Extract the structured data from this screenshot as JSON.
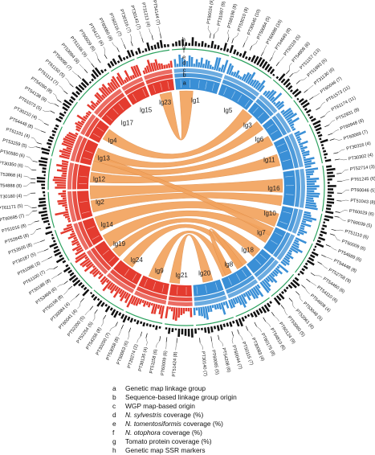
{
  "track_letters": [
    "h",
    "g",
    "f",
    "e",
    "d",
    "c",
    "b",
    "a"
  ],
  "linkage_groups": [
    {
      "label": "lg1",
      "side": "blue",
      "start": -6,
      "end": 18
    },
    {
      "label": "lg5",
      "side": "blue",
      "start": 19,
      "end": 38
    },
    {
      "label": "lg3",
      "side": "blue",
      "start": 39,
      "end": 50
    },
    {
      "label": "lg6",
      "side": "blue",
      "start": 51,
      "end": 62
    },
    {
      "label": "lg11",
      "side": "blue",
      "start": 63,
      "end": 80
    },
    {
      "label": "lg16",
      "side": "blue",
      "start": 81,
      "end": 100
    },
    {
      "label": "lg10",
      "side": "blue",
      "start": 101,
      "end": 113
    },
    {
      "label": "lg7",
      "side": "blue",
      "start": 114,
      "end": 128
    },
    {
      "label": "lg18",
      "side": "blue",
      "start": 129,
      "end": 142
    },
    {
      "label": "lg8",
      "side": "blue",
      "start": 143,
      "end": 159
    },
    {
      "label": "lg20",
      "side": "blue",
      "start": 160,
      "end": 176
    },
    {
      "label": "lg21",
      "side": "red",
      "start": 177,
      "end": 189
    },
    {
      "label": "lg9",
      "side": "red",
      "start": 190,
      "end": 206
    },
    {
      "label": "lg24",
      "side": "red",
      "start": 207,
      "end": 222
    },
    {
      "label": "lg19",
      "side": "red",
      "start": 223,
      "end": 237
    },
    {
      "label": "lg14",
      "side": "red",
      "start": 238,
      "end": 252
    },
    {
      "label": "lg2",
      "side": "red",
      "start": 253,
      "end": 268
    },
    {
      "label": "lg12",
      "side": "red",
      "start": 269,
      "end": 282
    },
    {
      "label": "lg13",
      "side": "red",
      "start": 283,
      "end": 296
    },
    {
      "label": "lg4",
      "side": "red",
      "start": 297,
      "end": 308
    },
    {
      "label": "lg17",
      "side": "red",
      "start": 309,
      "end": 326
    },
    {
      "label": "lg15",
      "side": "red",
      "start": 327,
      "end": 338
    },
    {
      "label": "lg23",
      "side": "red",
      "start": 339,
      "end": 353
    }
  ],
  "ribbons": [
    {
      "a": [
        -4,
        4
      ],
      "b": [
        344,
        351
      ]
    },
    {
      "a": [
        36,
        43
      ],
      "b": [
        300,
        307
      ]
    },
    {
      "a": [
        47,
        53
      ],
      "b": [
        288,
        294
      ]
    },
    {
      "a": [
        58,
        64
      ],
      "b": [
        280,
        286
      ]
    },
    {
      "a": [
        70,
        77
      ],
      "b": [
        273,
        279
      ]
    },
    {
      "a": [
        85,
        93
      ],
      "b": [
        263,
        271
      ]
    },
    {
      "a": [
        95,
        101
      ],
      "b": [
        255,
        262
      ]
    },
    {
      "a": [
        106,
        114
      ],
      "b": [
        243,
        252
      ]
    },
    {
      "a": [
        118,
        125
      ],
      "b": [
        232,
        240
      ]
    },
    {
      "a": [
        130,
        136
      ],
      "b": [
        224,
        230
      ]
    },
    {
      "a": [
        141,
        147
      ],
      "b": [
        214,
        221
      ]
    },
    {
      "a": [
        152,
        158
      ],
      "b": [
        196,
        203
      ]
    },
    {
      "a": [
        164,
        170
      ],
      "b": [
        184,
        190
      ]
    },
    {
      "a": [
        115,
        120
      ],
      "b": [
        286,
        290
      ]
    },
    {
      "a": [
        144,
        148
      ],
      "b": [
        152,
        156
      ]
    }
  ],
  "marker_labels_right": [
    "PT60024 (9)",
    "PT31097 (9)",
    "PT60198 (8)",
    "PT53010 (8)",
    "PT30045 (10)",
    "PT50064 (5)",
    "PT60098 (10)",
    "PT54640 (8)",
    "PT50119 (5)",
    "PT54808 (6)",
    "PT51157 (13)",
    "PT51893 (5)",
    "PT31130 (6)",
    "PT60046 (7)",
    "PT61573 (11)",
    "PT61174 (11)",
    "PT52931 (8)",
    "PT60948 (6)",
    "PT60069 (7)",
    "PT30316 (4)",
    "PT30302 (4)",
    "PT52714 (3)",
    "PT61245 (6)",
    "PT60046 (5)",
    "PT51043 (8)",
    "PT60029 (6)",
    "PT60039 (5)",
    "PT51110 (6)",
    "PT60009 (6)",
    "PT54689 (6)",
    "PT54448 (8)",
    "PT52758 (9)",
    "PT54460 (6)",
    "PT54110 (6)",
    "PT54608 (4)",
    "PT53048 (5)",
    "PT52061 (6)",
    "PT53060 (5)",
    "PT60124 (9)",
    "PT54810 (6)",
    "PT60175 (8)",
    "PT30083 (4)",
    "PT50115 (7)",
    "PT60044 (7)",
    "PT54208 (6)",
    "PT60065 (5)",
    "PT30140 (7)"
  ],
  "marker_labels_left": [
    "PT51424 (8)",
    "PT60009 (6)",
    "PT51158 (6)",
    "PT30135 (4)",
    "PT20274 (2)",
    "PT50063 (6)",
    "PT53058 (8)",
    "PT30200 (7)",
    "PT54256 (8)",
    "PT52254 (5)",
    "PT52200 (5)",
    "PT60041 (4)",
    "PT30084 (4)",
    "PT50158 (8)",
    "PT53469 (6)",
    "PT30188 (8)",
    "PT61100 (7)",
    "PT61086 (3)",
    "PT30187 (5)",
    "PT53505 (8)",
    "PT52845 (8)",
    "PT51016 (8)",
    "PT60695 (7)",
    "PT61171 (5)",
    "PT30180 (4)",
    "PT54888 (8)",
    "PT53868 (4)",
    "PT30350 (6)",
    "PT50580 (6)",
    "PT53259 (5)",
    "PT61101 (4)",
    "PT54448 (8)",
    "PT30210 (4)",
    "PT61073 (5)",
    "PT54138 (8)",
    "PT54260 (8)",
    "PT61113 (7)",
    "PT61150 (5)",
    "PT50095 (7)",
    "PT53084 (8)",
    "PT51166 (9)",
    "PT60029 (6)",
    "PT54127 (6)",
    "PT60060 (8)",
    "PT60216 (7)",
    "PT30116 (7)",
    "PT30143 (7)",
    "PT31213 (4)",
    "PT54144 (7)"
  ],
  "legend": [
    {
      "key": "a",
      "text": "Genetic map linkage group",
      "em": ""
    },
    {
      "key": "b",
      "text": "Sequence-based linkage group origin",
      "em": ""
    },
    {
      "key": "c",
      "text": "WGP map-based origin",
      "em": ""
    },
    {
      "key": "d",
      "text": " coverage (%)",
      "em": "N. sylvestris"
    },
    {
      "key": "e",
      "text": " coverage (%)",
      "em": "N. tomentosiformis"
    },
    {
      "key": "f",
      "text": " coverage (%)",
      "em": "N. otophora"
    },
    {
      "key": "g",
      "text": "Tomato protein coverage (%)",
      "em": ""
    },
    {
      "key": "h",
      "text": "Genetic map SSR markers",
      "em": ""
    }
  ],
  "colors": {
    "red": "#e43b2f",
    "blue": "#3a8fd6",
    "ribbon": "#f2a35e",
    "green": "#2ca25f",
    "black": "#111111"
  }
}
